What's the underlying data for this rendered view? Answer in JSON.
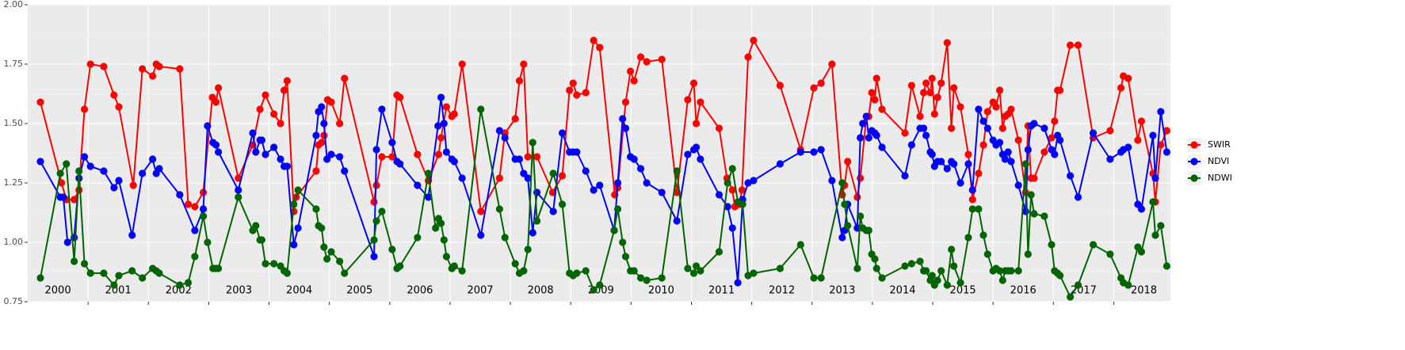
{
  "chart_data": {
    "type": "line",
    "xlim": [
      2000,
      2018.94
    ],
    "ylim": [
      0.75,
      2.0
    ],
    "yticks": [
      {
        "value": 0.75,
        "label": "0.75"
      },
      {
        "value": 1.0,
        "label": "1.00"
      },
      {
        "value": 1.25,
        "label": "1.25"
      },
      {
        "value": 1.5,
        "label": "1.50"
      },
      {
        "value": 1.75,
        "label": "1.75"
      },
      {
        "value": 2.0,
        "label": "2.00"
      }
    ],
    "xticks": [
      2001,
      2002,
      2003,
      2004,
      2005,
      2006,
      2007,
      2008,
      2009,
      2010,
      2011,
      2012,
      2013,
      2014,
      2015,
      2016,
      2017,
      2018
    ],
    "grid": true,
    "legend_position": "right",
    "annotations": [
      {
        "text": "2000",
        "x": 2000.5
      },
      {
        "text": "2001",
        "x": 2001.5
      },
      {
        "text": "2002",
        "x": 2002.5
      },
      {
        "text": "2003",
        "x": 2003.5
      },
      {
        "text": "2004",
        "x": 2004.5
      },
      {
        "text": "2005",
        "x": 2005.5
      },
      {
        "text": "2006",
        "x": 2006.5
      },
      {
        "text": "2007",
        "x": 2007.5
      },
      {
        "text": "2008",
        "x": 2008.5
      },
      {
        "text": "2009",
        "x": 2009.5
      },
      {
        "text": "2010",
        "x": 2010.5
      },
      {
        "text": "2011",
        "x": 2011.5
      },
      {
        "text": "2012",
        "x": 2012.5
      },
      {
        "text": "2013",
        "x": 2013.5
      },
      {
        "text": "2014",
        "x": 2014.5
      },
      {
        "text": "2015",
        "x": 2015.5
      },
      {
        "text": "2016",
        "x": 2016.5
      },
      {
        "text": "2017",
        "x": 2017.5
      },
      {
        "text": "2018",
        "x": 2018.5
      }
    ],
    "series": [
      {
        "name": "SWIR",
        "color": "#ff0000",
        "x": [
          2000.21,
          2000.56,
          2000.64,
          2000.77,
          2000.85,
          2000.94,
          2001.04,
          2001.26,
          2001.43,
          2001.51,
          2001.75,
          2001.9,
          2002.07,
          2002.13,
          2002.18,
          2002.52,
          2002.66,
          2002.77,
          2002.91,
          2003.06,
          2003.12,
          2003.16,
          2003.49,
          2003.73,
          2003.85,
          2003.94,
          2004.08,
          2004.19,
          2004.25,
          2004.3,
          2004.41,
          2004.45,
          2004.78,
          2004.82,
          2004.87,
          2004.91,
          2004.97,
          2005.03,
          2005.17,
          2005.25,
          2005.74,
          2005.78,
          2005.87,
          2006.04,
          2006.12,
          2006.17,
          2006.46,
          2006.64,
          2006.81,
          2006.85,
          2006.94,
          2007.03,
          2007.07,
          2007.2,
          2007.51,
          2007.82,
          2007.91,
          2008.08,
          2008.15,
          2008.22,
          2008.29,
          2008.44,
          2008.7,
          2008.86,
          2008.98,
          2009.04,
          2009.1,
          2009.25,
          2009.38,
          2009.48,
          2009.73,
          2009.78,
          2009.91,
          2009.99,
          2010.05,
          2010.16,
          2010.26,
          2010.51,
          2010.76,
          2010.94,
          2011.04,
          2011.08,
          2011.15,
          2011.46,
          2011.59,
          2011.68,
          2011.72,
          2011.79,
          2011.84,
          2011.94,
          2012.03,
          2012.47,
          2012.81,
          2013.03,
          2013.15,
          2013.33,
          2013.5,
          2013.54,
          2013.59,
          2013.75,
          2013.8,
          2013.9,
          2013.94,
          2013.99,
          2014.04,
          2014.07,
          2014.16,
          2014.54,
          2014.65,
          2014.79,
          2014.85,
          2014.89,
          2014.96,
          2014.99,
          2015.03,
          2015.08,
          2015.14,
          2015.24,
          2015.31,
          2015.35,
          2015.46,
          2015.59,
          2015.66,
          2015.76,
          2015.84,
          2015.91,
          2016.0,
          2016.05,
          2016.11,
          2016.16,
          2016.2,
          2016.25,
          2016.3,
          2016.42,
          2016.54,
          2016.58,
          2016.63,
          2016.68,
          2016.85,
          2016.97,
          2017.02,
          2017.07,
          2017.11,
          2017.28,
          2017.41,
          2017.66,
          2017.94,
          2018.12,
          2018.16,
          2018.24,
          2018.4,
          2018.46,
          2018.65,
          2018.69,
          2018.78,
          2018.88
        ],
        "values": [
          1.59,
          1.25,
          1.18,
          1.18,
          1.22,
          1.56,
          1.75,
          1.74,
          1.62,
          1.57,
          1.24,
          1.73,
          1.7,
          1.75,
          1.74,
          1.73,
          1.16,
          1.15,
          1.21,
          1.61,
          1.59,
          1.65,
          1.27,
          1.41,
          1.56,
          1.62,
          1.54,
          1.5,
          1.64,
          1.68,
          1.13,
          1.19,
          1.3,
          1.41,
          1.42,
          1.45,
          1.6,
          1.59,
          1.5,
          1.69,
          1.17,
          1.24,
          1.36,
          1.36,
          1.62,
          1.61,
          1.37,
          1.26,
          1.37,
          1.44,
          1.57,
          1.53,
          1.54,
          1.75,
          1.13,
          1.27,
          1.46,
          1.52,
          1.68,
          1.75,
          1.36,
          1.36,
          1.21,
          1.28,
          1.64,
          1.67,
          1.62,
          1.63,
          1.85,
          1.82,
          1.2,
          1.23,
          1.59,
          1.72,
          1.68,
          1.78,
          1.76,
          1.77,
          1.21,
          1.6,
          1.67,
          1.5,
          1.59,
          1.48,
          1.27,
          1.22,
          1.15,
          1.16,
          1.22,
          1.78,
          1.85,
          1.66,
          1.39,
          1.65,
          1.67,
          1.75,
          1.2,
          1.24,
          1.34,
          1.19,
          1.27,
          1.53,
          1.53,
          1.63,
          1.6,
          1.69,
          1.56,
          1.46,
          1.66,
          1.53,
          1.63,
          1.67,
          1.63,
          1.69,
          1.54,
          1.61,
          1.67,
          1.84,
          1.48,
          1.65,
          1.57,
          1.37,
          1.18,
          1.29,
          1.41,
          1.55,
          1.59,
          1.57,
          1.64,
          1.48,
          1.53,
          1.54,
          1.56,
          1.43,
          1.21,
          1.49,
          1.27,
          1.27,
          1.38,
          1.44,
          1.51,
          1.64,
          1.64,
          1.83,
          1.83,
          1.44,
          1.47,
          1.65,
          1.7,
          1.69,
          1.43,
          1.51,
          1.29,
          1.17,
          1.41,
          1.47
        ]
      },
      {
        "name": "NDVI",
        "color": "#0000ff",
        "x": [
          2000.21,
          2000.54,
          2000.59,
          2000.66,
          2000.77,
          2000.85,
          2000.94,
          2001.04,
          2001.26,
          2001.43,
          2001.51,
          2001.73,
          2001.9,
          2002.07,
          2002.13,
          2002.18,
          2002.52,
          2002.77,
          2002.91,
          2002.98,
          2003.07,
          2003.12,
          2003.16,
          2003.49,
          2003.73,
          2003.78,
          2003.85,
          2003.88,
          2003.94,
          2004.08,
          2004.19,
          2004.25,
          2004.3,
          2004.41,
          2004.48,
          2004.78,
          2004.82,
          2004.87,
          2004.91,
          2004.96,
          2005.03,
          2005.17,
          2005.25,
          2005.74,
          2005.78,
          2005.87,
          2006.04,
          2006.12,
          2006.17,
          2006.46,
          2006.64,
          2006.8,
          2006.85,
          2006.9,
          2006.94,
          2007.03,
          2007.07,
          2007.2,
          2007.51,
          2007.82,
          2007.91,
          2008.08,
          2008.15,
          2008.22,
          2008.29,
          2008.37,
          2008.44,
          2008.71,
          2008.86,
          2008.98,
          2009.04,
          2009.1,
          2009.25,
          2009.38,
          2009.48,
          2009.72,
          2009.78,
          2009.86,
          2009.91,
          2009.99,
          2010.05,
          2010.16,
          2010.26,
          2010.51,
          2010.76,
          2010.94,
          2011.04,
          2011.08,
          2011.15,
          2011.46,
          2011.6,
          2011.68,
          2011.77,
          2011.85,
          2011.94,
          2012.03,
          2012.47,
          2012.81,
          2013.03,
          2013.15,
          2013.33,
          2013.5,
          2013.54,
          2013.59,
          2013.75,
          2013.8,
          2013.84,
          2013.9,
          2013.94,
          2013.99,
          2014.04,
          2014.07,
          2014.16,
          2014.54,
          2014.65,
          2014.79,
          2014.85,
          2014.89,
          2014.96,
          2014.99,
          2015.03,
          2015.08,
          2015.14,
          2015.24,
          2015.31,
          2015.35,
          2015.46,
          2015.59,
          2015.66,
          2015.76,
          2015.84,
          2015.91,
          2016.0,
          2016.05,
          2016.11,
          2016.16,
          2016.2,
          2016.25,
          2016.3,
          2016.42,
          2016.54,
          2016.58,
          2016.63,
          2016.68,
          2016.85,
          2016.97,
          2017.02,
          2017.07,
          2017.11,
          2017.28,
          2017.41,
          2017.66,
          2017.94,
          2018.12,
          2018.16,
          2018.24,
          2018.4,
          2018.46,
          2018.65,
          2018.69,
          2018.78,
          2018.88
        ],
        "values": [
          1.34,
          1.19,
          1.19,
          1.0,
          1.02,
          1.27,
          1.36,
          1.32,
          1.3,
          1.23,
          1.26,
          1.03,
          1.29,
          1.35,
          1.29,
          1.31,
          1.2,
          1.05,
          1.14,
          1.49,
          1.42,
          1.41,
          1.38,
          1.22,
          1.46,
          1.38,
          1.43,
          1.43,
          1.37,
          1.4,
          1.35,
          1.32,
          1.32,
          0.99,
          1.06,
          1.45,
          1.55,
          1.57,
          1.5,
          1.35,
          1.37,
          1.36,
          1.3,
          0.94,
          1.39,
          1.56,
          1.42,
          1.34,
          1.33,
          1.24,
          1.19,
          1.49,
          1.61,
          1.5,
          1.38,
          1.35,
          1.34,
          1.27,
          1.03,
          1.47,
          1.44,
          1.35,
          1.35,
          1.29,
          1.27,
          1.04,
          1.21,
          1.13,
          1.46,
          1.38,
          1.38,
          1.38,
          1.3,
          1.22,
          1.24,
          1.05,
          1.25,
          1.52,
          1.48,
          1.36,
          1.35,
          1.31,
          1.25,
          1.21,
          1.09,
          1.37,
          1.39,
          1.4,
          1.35,
          1.2,
          1.15,
          1.06,
          0.83,
          1.18,
          1.25,
          1.26,
          1.33,
          1.38,
          1.38,
          1.39,
          1.26,
          1.02,
          1.05,
          1.16,
          1.06,
          1.44,
          1.5,
          1.53,
          1.44,
          1.47,
          1.46,
          1.45,
          1.4,
          1.28,
          1.41,
          1.48,
          1.48,
          1.45,
          1.38,
          1.37,
          1.32,
          1.34,
          1.34,
          1.31,
          1.34,
          1.33,
          1.25,
          1.33,
          1.22,
          1.56,
          1.51,
          1.48,
          1.43,
          1.41,
          1.42,
          1.37,
          1.35,
          1.38,
          1.34,
          1.24,
          1.13,
          1.39,
          1.49,
          1.5,
          1.48,
          1.39,
          1.37,
          1.45,
          1.43,
          1.28,
          1.19,
          1.46,
          1.35,
          1.38,
          1.39,
          1.4,
          1.16,
          1.14,
          1.45,
          1.27,
          1.55,
          1.38
        ]
      },
      {
        "name": "NDWI",
        "color": "#006400",
        "x": [
          2000.21,
          2000.54,
          2000.64,
          2000.77,
          2000.85,
          2000.94,
          2001.04,
          2001.26,
          2001.43,
          2001.51,
          2001.73,
          2001.9,
          2002.07,
          2002.13,
          2002.18,
          2002.52,
          2002.66,
          2002.77,
          2002.91,
          2002.98,
          2003.07,
          2003.12,
          2003.16,
          2003.49,
          2003.73,
          2003.78,
          2003.85,
          2003.88,
          2003.94,
          2004.08,
          2004.19,
          2004.25,
          2004.3,
          2004.41,
          2004.48,
          2004.78,
          2004.82,
          2004.87,
          2004.91,
          2004.96,
          2005.03,
          2005.17,
          2005.25,
          2005.74,
          2005.78,
          2005.87,
          2006.04,
          2006.12,
          2006.17,
          2006.46,
          2006.64,
          2006.76,
          2006.81,
          2006.85,
          2006.9,
          2006.94,
          2007.03,
          2007.07,
          2007.2,
          2007.51,
          2007.82,
          2007.91,
          2008.08,
          2008.15,
          2008.22,
          2008.29,
          2008.37,
          2008.44,
          2008.71,
          2008.86,
          2008.98,
          2009.04,
          2009.1,
          2009.25,
          2009.38,
          2009.48,
          2009.72,
          2009.78,
          2009.86,
          2009.91,
          2009.99,
          2010.05,
          2010.16,
          2010.26,
          2010.51,
          2010.76,
          2010.94,
          2011.04,
          2011.08,
          2011.15,
          2011.46,
          2011.6,
          2011.68,
          2011.77,
          2011.85,
          2011.94,
          2012.03,
          2012.47,
          2012.81,
          2013.03,
          2013.15,
          2013.5,
          2013.54,
          2013.59,
          2013.75,
          2013.8,
          2013.84,
          2013.9,
          2013.94,
          2013.99,
          2014.04,
          2014.07,
          2014.16,
          2014.54,
          2014.65,
          2014.79,
          2014.85,
          2014.89,
          2014.96,
          2014.99,
          2015.03,
          2015.08,
          2015.14,
          2015.24,
          2015.31,
          2015.35,
          2015.46,
          2015.59,
          2015.66,
          2015.76,
          2015.84,
          2015.91,
          2016.0,
          2016.05,
          2016.11,
          2016.16,
          2016.2,
          2016.25,
          2016.3,
          2016.42,
          2016.54,
          2016.58,
          2016.63,
          2016.68,
          2016.85,
          2016.97,
          2017.02,
          2017.07,
          2017.11,
          2017.28,
          2017.41,
          2017.66,
          2017.94,
          2018.12,
          2018.16,
          2018.24,
          2018.4,
          2018.46,
          2018.65,
          2018.69,
          2018.78,
          2018.88
        ],
        "values": [
          0.85,
          1.29,
          1.33,
          0.92,
          1.3,
          0.91,
          0.87,
          0.87,
          0.82,
          0.86,
          0.88,
          0.85,
          0.89,
          0.88,
          0.87,
          0.82,
          0.83,
          0.94,
          1.11,
          1.0,
          0.89,
          0.89,
          0.89,
          1.19,
          1.05,
          1.07,
          1.01,
          1.01,
          0.91,
          0.91,
          0.9,
          0.88,
          0.87,
          1.16,
          1.22,
          1.14,
          1.07,
          1.06,
          0.98,
          0.93,
          0.96,
          0.92,
          0.87,
          1.01,
          1.09,
          1.13,
          0.97,
          0.89,
          0.9,
          1.02,
          1.29,
          1.06,
          1.1,
          1.08,
          1.01,
          0.94,
          0.89,
          0.9,
          0.88,
          1.56,
          1.14,
          1.02,
          0.91,
          0.87,
          0.88,
          0.97,
          1.42,
          1.09,
          1.29,
          1.16,
          0.87,
          0.86,
          0.87,
          0.88,
          0.8,
          0.82,
          1.05,
          1.14,
          1.0,
          0.94,
          0.88,
          0.88,
          0.85,
          0.84,
          0.85,
          1.3,
          0.89,
          0.87,
          0.9,
          0.88,
          0.96,
          1.25,
          1.31,
          1.17,
          1.16,
          0.86,
          0.87,
          0.89,
          0.99,
          0.85,
          0.85,
          1.25,
          1.16,
          1.07,
          0.89,
          1.11,
          1.06,
          1.05,
          1.05,
          0.95,
          0.93,
          0.89,
          0.85,
          0.9,
          0.91,
          0.92,
          0.88,
          0.88,
          0.84,
          0.86,
          0.82,
          0.84,
          0.88,
          0.82,
          0.97,
          0.9,
          0.83,
          1.02,
          1.14,
          1.14,
          1.03,
          0.95,
          0.88,
          0.89,
          0.88,
          0.84,
          0.88,
          0.88,
          0.88,
          0.88,
          1.33,
          0.95,
          1.2,
          1.12,
          1.11,
          0.99,
          0.88,
          0.87,
          0.86,
          0.77,
          0.82,
          0.99,
          0.95,
          0.85,
          0.83,
          0.82,
          0.98,
          0.96,
          1.17,
          1.03,
          1.07,
          0.9
        ]
      }
    ]
  }
}
